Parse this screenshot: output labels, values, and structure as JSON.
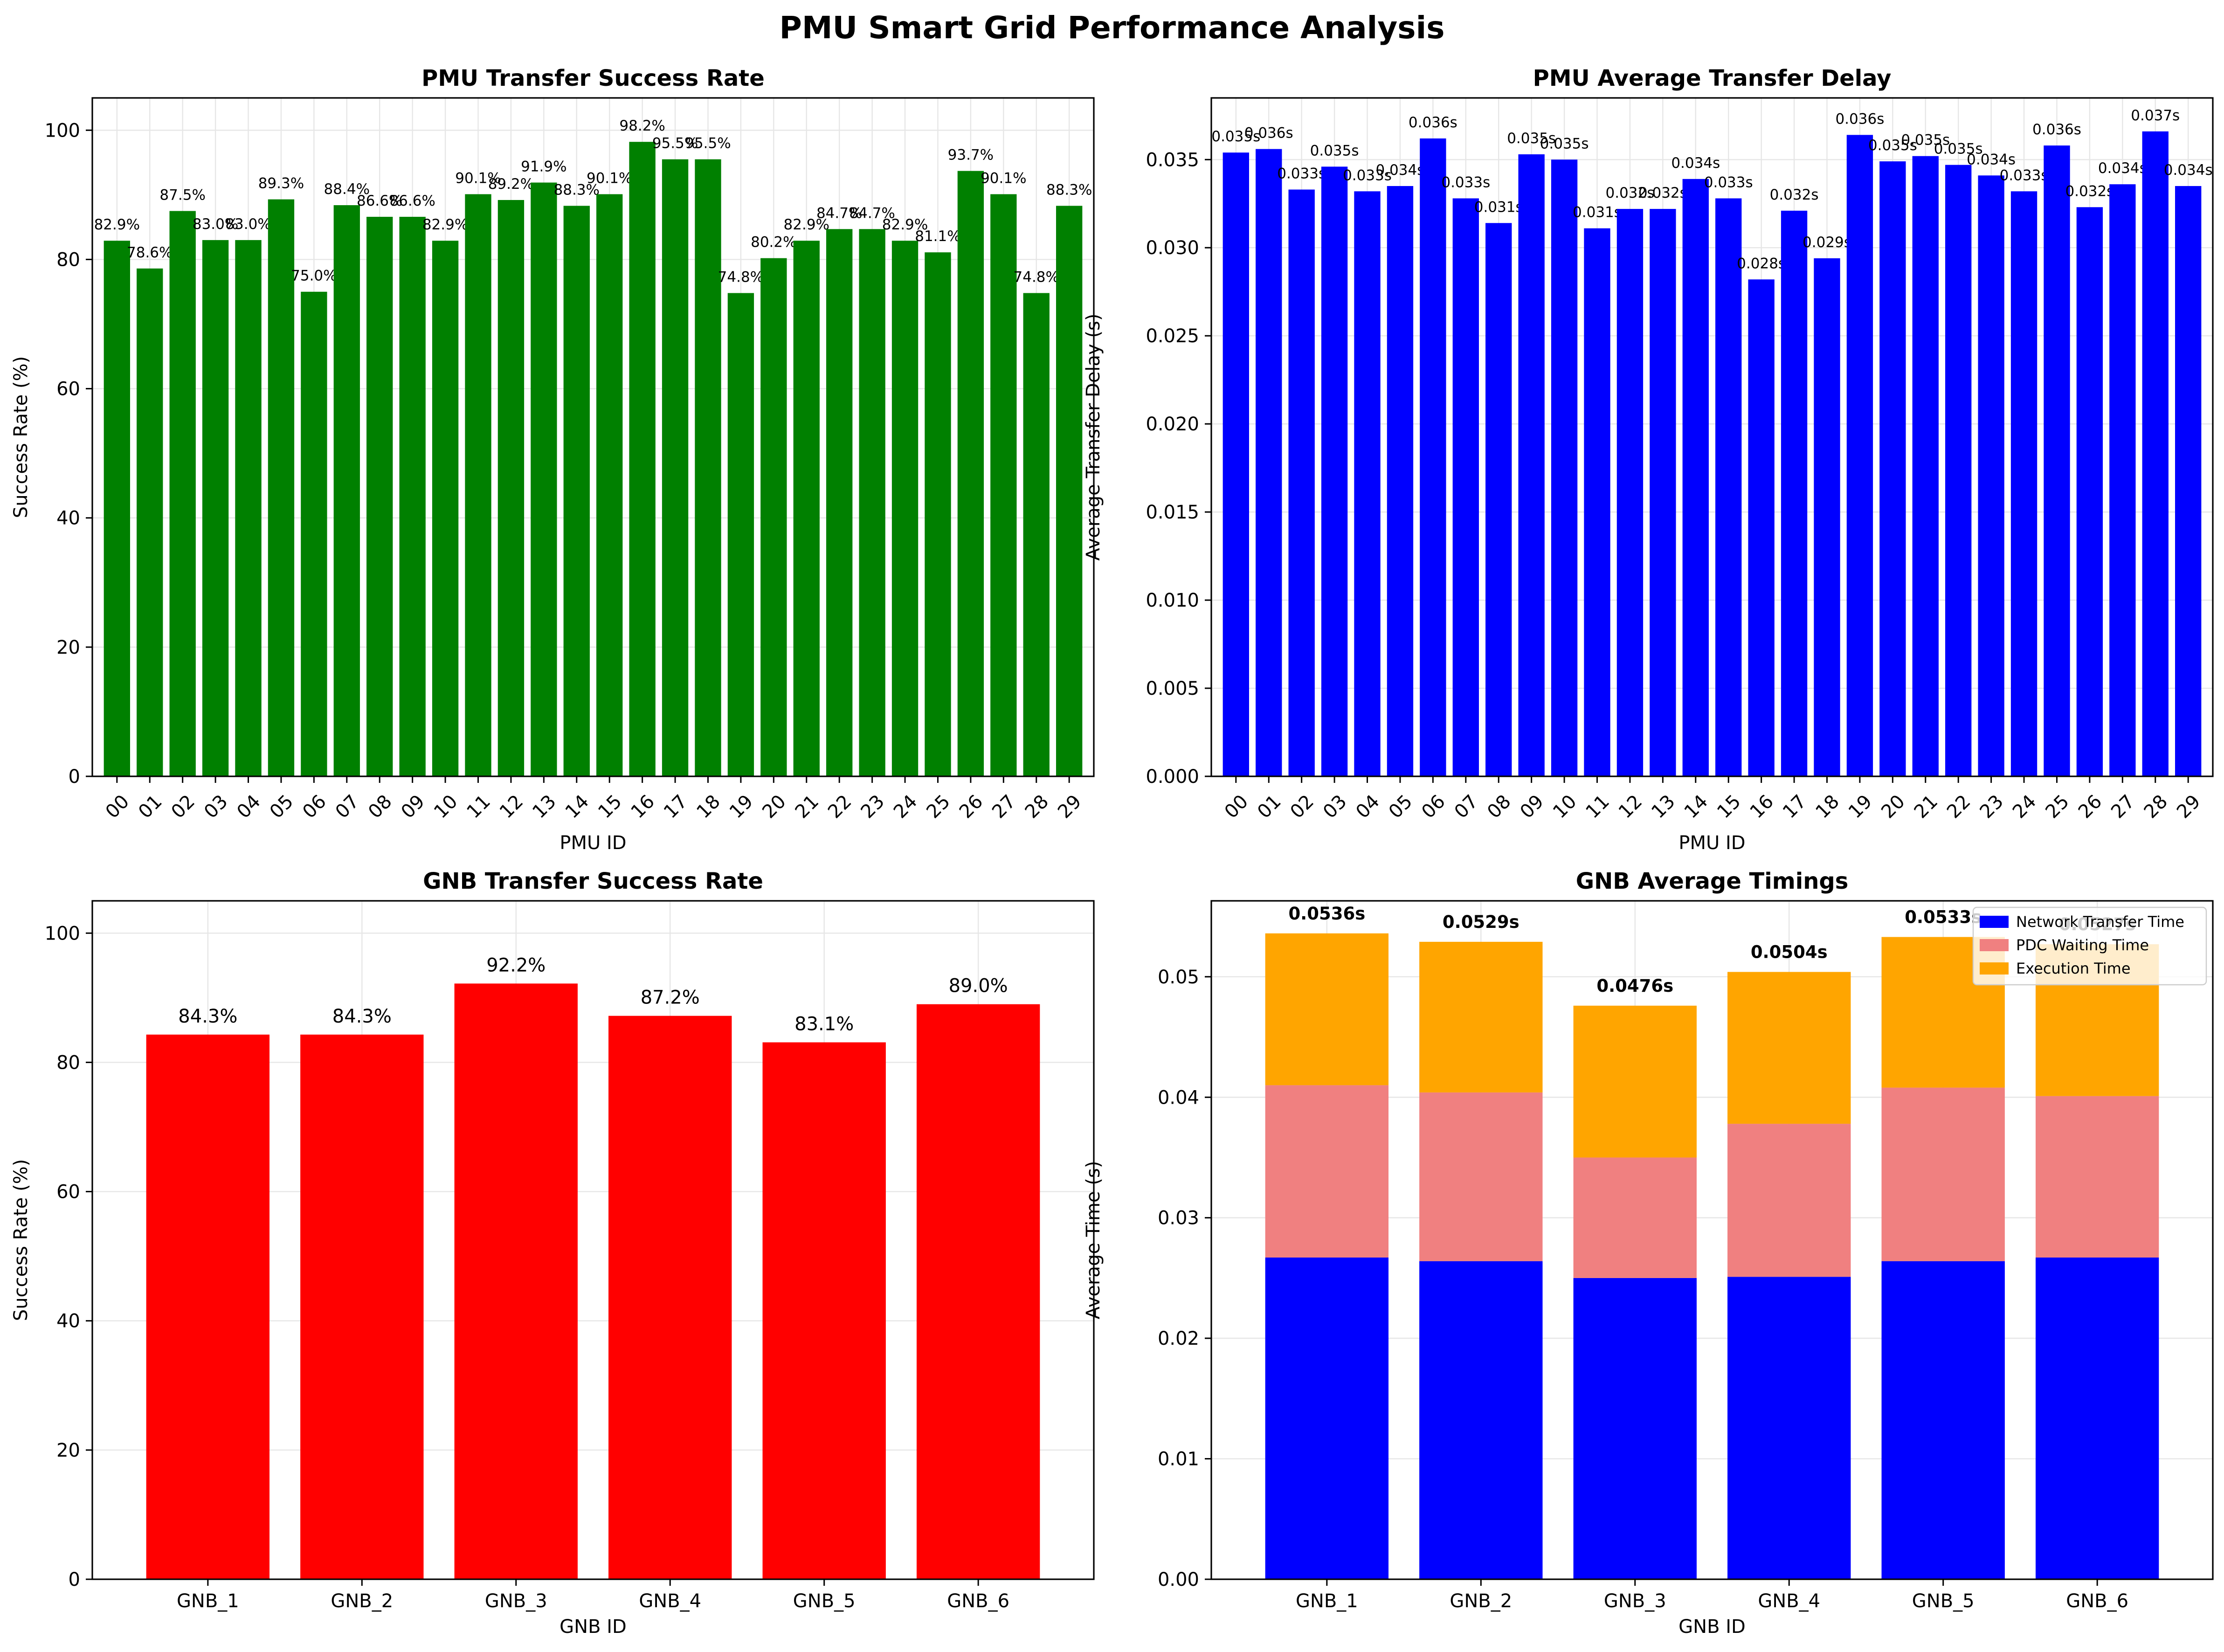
{
  "title": "PMU Smart Grid Performance Analysis",
  "chart_data": [
    {
      "type": "bar",
      "title": "PMU Transfer Success Rate",
      "xlabel": "PMU ID",
      "ylabel": "Success Rate (%)",
      "categories": [
        "00",
        "01",
        "02",
        "03",
        "04",
        "05",
        "06",
        "07",
        "08",
        "09",
        "10",
        "11",
        "12",
        "13",
        "14",
        "15",
        "16",
        "17",
        "18",
        "19",
        "20",
        "21",
        "22",
        "23",
        "24",
        "25",
        "26",
        "27",
        "28",
        "29"
      ],
      "values": [
        82.9,
        78.6,
        87.5,
        83.0,
        83.0,
        89.3,
        75.0,
        88.4,
        86.6,
        86.6,
        82.9,
        90.1,
        89.2,
        91.9,
        88.3,
        90.1,
        98.2,
        95.5,
        95.5,
        74.8,
        80.2,
        82.9,
        84.7,
        84.7,
        82.9,
        81.1,
        93.7,
        90.1,
        74.8,
        88.3
      ],
      "labels": [
        "82.9%",
        "78.6%",
        "87.5%",
        "83.0%",
        "83.0%",
        "89.3%",
        "75.0%",
        "88.4%",
        "86.6%",
        "86.6%",
        "82.9%",
        "90.1%",
        "89.2%",
        "91.9%",
        "88.3%",
        "90.1%",
        "98.2%",
        "95.5%",
        "95.5%",
        "74.8%",
        "80.2%",
        "82.9%",
        "84.7%",
        "84.7%",
        "82.9%",
        "81.1%",
        "93.7%",
        "90.1%",
        "74.8%",
        "88.3%"
      ],
      "ylim": [
        0,
        105
      ],
      "yticks": [
        "0",
        "20",
        "40",
        "60",
        "80",
        "100"
      ],
      "ytick_values": [
        0,
        20,
        40,
        60,
        80,
        100
      ],
      "color": "#008000",
      "grid": true,
      "rotate_xticks": true
    },
    {
      "type": "bar",
      "title": "PMU Average Transfer Delay",
      "xlabel": "PMU ID",
      "ylabel": "Average Transfer Delay (s)",
      "categories": [
        "00",
        "01",
        "02",
        "03",
        "04",
        "05",
        "06",
        "07",
        "08",
        "09",
        "10",
        "11",
        "12",
        "13",
        "14",
        "15",
        "16",
        "17",
        "18",
        "19",
        "20",
        "21",
        "22",
        "23",
        "24",
        "25",
        "26",
        "27",
        "28",
        "29"
      ],
      "values": [
        0.0354,
        0.0356,
        0.0333,
        0.0346,
        0.0332,
        0.0335,
        0.0362,
        0.0328,
        0.0314,
        0.0353,
        0.035,
        0.0311,
        0.0322,
        0.0322,
        0.0339,
        0.0328,
        0.0282,
        0.0321,
        0.0294,
        0.0364,
        0.0349,
        0.0352,
        0.0347,
        0.0341,
        0.0332,
        0.0358,
        0.0323,
        0.0336,
        0.0366,
        0.0335
      ],
      "labels": [
        "0.035s",
        "0.036s",
        "0.033s",
        "0.035s",
        "0.033s",
        "0.034s",
        "0.036s",
        "0.033s",
        "0.031s",
        "0.035s",
        "0.035s",
        "0.031s",
        "0.032s",
        "0.032s",
        "0.034s",
        "0.033s",
        "0.028s",
        "0.032s",
        "0.029s",
        "0.036s",
        "0.035s",
        "0.035s",
        "0.035s",
        "0.034s",
        "0.033s",
        "0.036s",
        "0.032s",
        "0.034s",
        "0.037s",
        "0.034s"
      ],
      "ylim": [
        0,
        0.0385
      ],
      "yticks": [
        "0.000",
        "0.005",
        "0.010",
        "0.015",
        "0.020",
        "0.025",
        "0.030",
        "0.035"
      ],
      "ytick_values": [
        0,
        0.005,
        0.01,
        0.015,
        0.02,
        0.025,
        0.03,
        0.035
      ],
      "color": "#0000ff",
      "grid": true,
      "rotate_xticks": true
    },
    {
      "type": "bar",
      "title": "GNB Transfer Success Rate",
      "xlabel": "GNB ID",
      "ylabel": "Success Rate (%)",
      "categories": [
        "GNB_1",
        "GNB_2",
        "GNB_3",
        "GNB_4",
        "GNB_5",
        "GNB_6"
      ],
      "values": [
        84.3,
        84.3,
        92.2,
        87.2,
        83.1,
        89.0
      ],
      "labels": [
        "84.3%",
        "84.3%",
        "92.2%",
        "87.2%",
        "83.1%",
        "89.0%"
      ],
      "ylim": [
        0,
        105
      ],
      "yticks": [
        "0",
        "20",
        "40",
        "60",
        "80",
        "100"
      ],
      "ytick_values": [
        0,
        20,
        40,
        60,
        80,
        100
      ],
      "color": "#ff0000",
      "grid": true,
      "rotate_xticks": false
    },
    {
      "type": "bar",
      "stacked": true,
      "title": "GNB Average Timings",
      "xlabel": "GNB ID",
      "ylabel": "Average Time (s)",
      "categories": [
        "GNB_1",
        "GNB_2",
        "GNB_3",
        "GNB_4",
        "GNB_5",
        "GNB_6"
      ],
      "series": [
        {
          "name": "Network Transfer Time",
          "color": "#0000ff",
          "values": [
            0.0267,
            0.0264,
            0.025,
            0.0251,
            0.0264,
            0.0267
          ]
        },
        {
          "name": "PDC Waiting Time",
          "color": "#f08080",
          "values": [
            0.0143,
            0.014,
            0.01,
            0.0127,
            0.0144,
            0.0134
          ]
        },
        {
          "name": "Execution Time",
          "color": "#ffa500",
          "values": [
            0.0126,
            0.0125,
            0.0126,
            0.0126,
            0.0125,
            0.0126
          ]
        }
      ],
      "totals": [
        "0.0536s",
        "0.0529s",
        "0.0476s",
        "0.0504s",
        "0.0533s",
        "0.0527s"
      ],
      "ylim": [
        0,
        0.0563
      ],
      "yticks": [
        "0.00",
        "0.01",
        "0.02",
        "0.03",
        "0.04",
        "0.05"
      ],
      "ytick_values": [
        0,
        0.01,
        0.02,
        0.03,
        0.04,
        0.05
      ],
      "legend_position": "upper right",
      "grid": true,
      "rotate_xticks": false
    }
  ]
}
